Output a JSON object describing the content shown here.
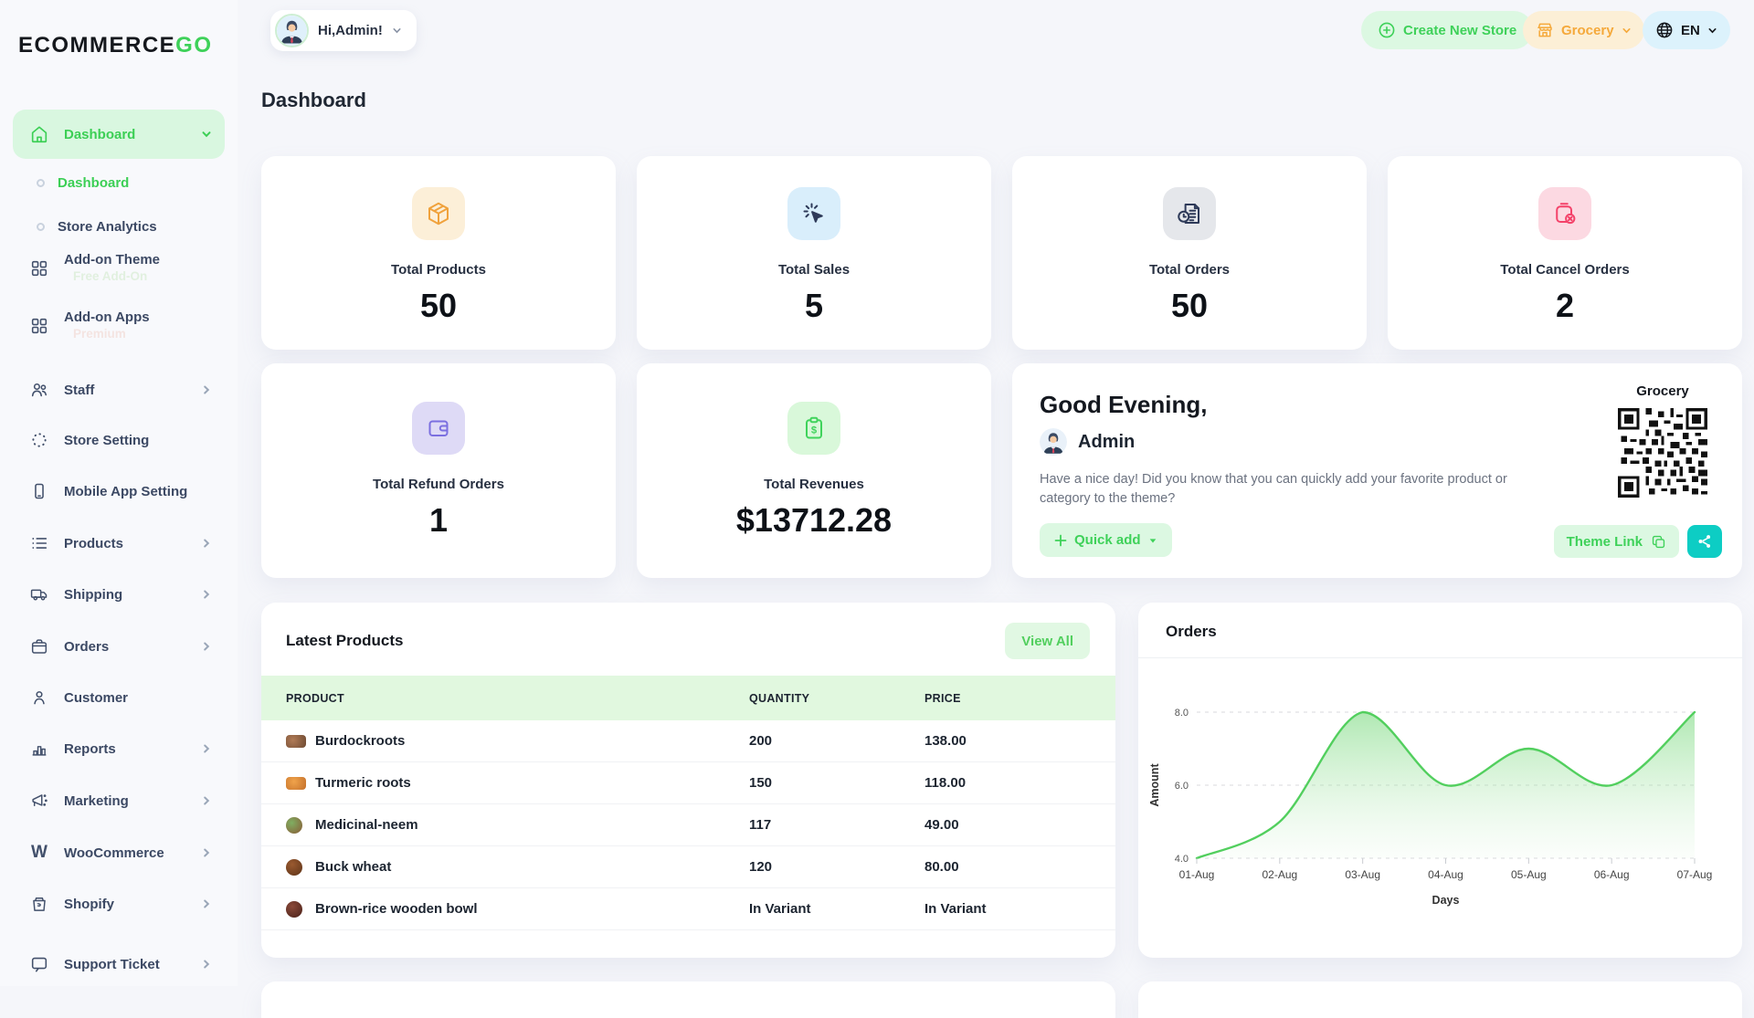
{
  "brand": {
    "name_black": "ECOΜΜERCE",
    "name_green": "GO"
  },
  "topbar": {
    "user_chip": "Hi,Admin!",
    "create_new_store": "Create New Store",
    "store_selector": "Grocery",
    "language": "EN"
  },
  "page_title": "Dashboard",
  "sidebar": {
    "parent": {
      "label": "Dashboard"
    },
    "items": [
      {
        "label": "Dashboard"
      },
      {
        "label": "Store Analytics"
      },
      {
        "label": "Add-on Theme",
        "badge": "Free Add-On"
      },
      {
        "label": "Add-on Apps",
        "badge": "Premium"
      },
      {
        "label": "Staff"
      },
      {
        "label": "Store Setting"
      },
      {
        "label": "Mobile App Setting"
      },
      {
        "label": "Products"
      },
      {
        "label": "Shipping"
      },
      {
        "label": "Orders"
      },
      {
        "label": "Customer"
      },
      {
        "label": "Reports"
      },
      {
        "label": "Marketing"
      },
      {
        "label": "WooCommerce",
        "icon_letter": "W"
      },
      {
        "label": "Shopify"
      },
      {
        "label": "Support Ticket"
      }
    ]
  },
  "stats": [
    {
      "label": "Total Products",
      "value": "50",
      "color": "#F0A23C",
      "bg": "#FCEFD8"
    },
    {
      "label": "Total Sales",
      "value": "5",
      "color": "#2E3A59",
      "bg": "#D9EEFB"
    },
    {
      "label": "Total Orders",
      "value": "50",
      "color": "#2E3A59",
      "bg": "#E5E7EB"
    },
    {
      "label": "Total Cancel Orders",
      "value": "2",
      "color": "#F4426A",
      "bg": "#FCD9E2"
    },
    {
      "label": "Total Refund Orders",
      "value": "1",
      "color": "#7B6FE0",
      "bg": "#DEDAF6"
    },
    {
      "label": "Total Revenues",
      "value": "$13712.28",
      "color": "#3FD35B",
      "bg": "#D9F8DA"
    }
  ],
  "greeting": {
    "title": "Good Evening,",
    "name": "Admin",
    "message": "Have a nice day! Did you know that you can quickly add your favorite product or category to the theme?",
    "quick_add_label": "Quick add",
    "store_name": "Grocery",
    "theme_link_label": "Theme Link"
  },
  "latest_products": {
    "title": "Latest Products",
    "view_all_label": "View All",
    "columns": [
      "PRODUCT",
      "QUANTITY",
      "PRICE"
    ],
    "rows": [
      {
        "product": "Burdockroots",
        "quantity": "200",
        "price": "138.00"
      },
      {
        "product": "Turmeric roots",
        "quantity": "150",
        "price": "118.00"
      },
      {
        "product": "Medicinal-neem",
        "quantity": "117",
        "price": "49.00"
      },
      {
        "product": "Buck wheat",
        "quantity": "120",
        "price": "80.00"
      },
      {
        "product": "Brown-rice wooden bowl",
        "quantity": "In Variant",
        "price": "In Variant"
      }
    ]
  },
  "chart_data": {
    "type": "area",
    "title": "Orders",
    "x": [
      "01-Aug",
      "02-Aug",
      "03-Aug",
      "04-Aug",
      "05-Aug",
      "06-Aug",
      "07-Aug"
    ],
    "values": [
      4,
      5,
      8,
      6,
      7,
      6,
      8
    ],
    "xlabel": "Days",
    "ylabel": "Amount",
    "ylim": [
      4,
      8
    ],
    "yticks": [
      4.0,
      6.0,
      8.0
    ],
    "grid": "dashed-horizontal",
    "legend": "none",
    "line_color": "#52cf5e",
    "fill_top": "rgba(111,214,116,0.55)",
    "fill_bottom": "rgba(190,235,190,0.05)"
  },
  "colors": {
    "accent_green": "#3ED159",
    "accent_green_bg": "#DCF8E2",
    "orange": "#F5A93B",
    "orange_bg": "#FCEFD6",
    "lang_chip_bg": "#DCF2FC",
    "teal": "#0DCDC4",
    "sidebar_active_bg": "#D9F7E0"
  }
}
